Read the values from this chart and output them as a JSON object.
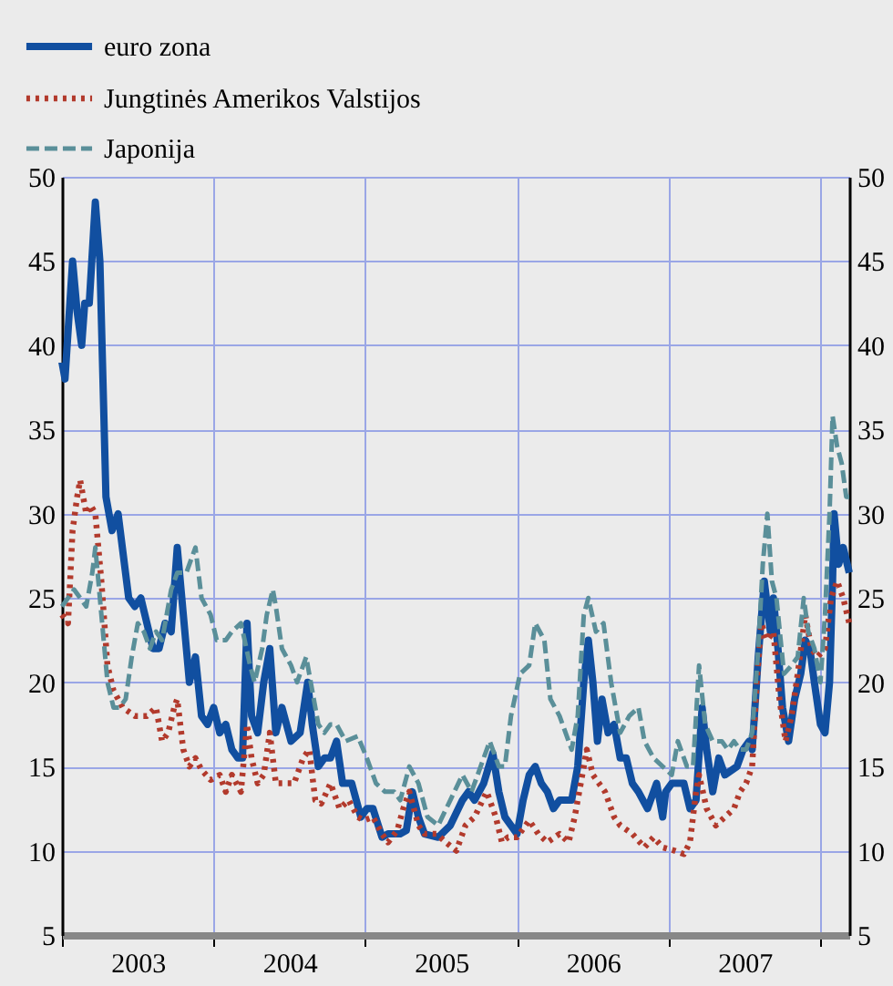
{
  "chart_data": {
    "type": "line",
    "xlim": [
      2003,
      2008.19
    ],
    "xticks": [
      {
        "value": 2003,
        "label": null
      },
      {
        "value": 2003.5,
        "label": "2003"
      },
      {
        "value": 2004,
        "label": null
      },
      {
        "value": 2004.5,
        "label": "2004"
      },
      {
        "value": 2005,
        "label": null
      },
      {
        "value": 2005.5,
        "label": "2005"
      },
      {
        "value": 2006,
        "label": null
      },
      {
        "value": 2006.5,
        "label": "2006"
      },
      {
        "value": 2007,
        "label": null
      },
      {
        "value": 2007.5,
        "label": "2007"
      },
      {
        "value": 2008,
        "label": null
      }
    ],
    "ylim": [
      5,
      50
    ],
    "yticks": [
      5,
      10,
      15,
      20,
      25,
      30,
      35,
      40,
      45,
      50
    ],
    "y2lim": [
      5,
      50
    ],
    "y2ticks": [
      5,
      10,
      15,
      20,
      25,
      30,
      35,
      40,
      45,
      50
    ],
    "grid": true,
    "legend": "top left",
    "marker": "none",
    "series": [
      {
        "name": "euro zona",
        "color": "#114fa0",
        "line_style": "solid",
        "x": [
          2003.0,
          2003.02,
          2003.07,
          2003.1,
          2003.13,
          2003.15,
          2003.18,
          2003.22,
          2003.25,
          2003.27,
          2003.29,
          2003.33,
          2003.37,
          2003.44,
          2003.48,
          2003.52,
          2003.56,
          2003.6,
          2003.64,
          2003.68,
          2003.72,
          2003.76,
          2003.8,
          2003.84,
          2003.88,
          2003.92,
          2003.96,
          2004.0,
          2004.04,
          2004.08,
          2004.12,
          2004.16,
          2004.19,
          2004.22,
          2004.25,
          2004.29,
          2004.33,
          2004.37,
          2004.41,
          2004.45,
          2004.51,
          2004.57,
          2004.62,
          2004.65,
          2004.69,
          2004.73,
          2004.77,
          2004.81,
          2004.85,
          2004.91,
          2004.97,
          2005.01,
          2005.05,
          2005.11,
          2005.15,
          2005.19,
          2005.23,
          2005.27,
          2005.31,
          2005.35,
          2005.39,
          2005.48,
          2005.56,
          2005.64,
          2005.68,
          2005.72,
          2005.78,
          2005.84,
          2005.88,
          2005.92,
          2006.0,
          2006.04,
          2006.08,
          2006.12,
          2006.16,
          2006.2,
          2006.24,
          2006.28,
          2006.36,
          2006.4,
          2006.44,
          2006.47,
          2006.5,
          2006.53,
          2006.56,
          2006.6,
          2006.64,
          2006.68,
          2006.72,
          2006.76,
          2006.8,
          2006.86,
          2006.92,
          2006.96,
          2006.98,
          2007.02,
          2007.1,
          2007.14,
          2007.18,
          2007.22,
          2007.25,
          2007.29,
          2007.33,
          2007.37,
          2007.45,
          2007.49,
          2007.53,
          2007.55,
          2007.59,
          2007.63,
          2007.67,
          2007.69,
          2007.72,
          2007.75,
          2007.79,
          2007.83,
          2007.87,
          2007.9,
          2007.93,
          2007.96,
          2008.0,
          2008.03,
          2008.06,
          2008.08,
          2008.09,
          2008.12,
          2008.15,
          2008.19
        ],
        "values": [
          39,
          38,
          45,
          42,
          40,
          42.5,
          42.5,
          48.5,
          45,
          38,
          31,
          29,
          30,
          25,
          24.5,
          25,
          23.5,
          22,
          22,
          23.5,
          23,
          28,
          24,
          20,
          21.5,
          18,
          17.5,
          18.5,
          17,
          17.5,
          16,
          15.5,
          15.5,
          23.5,
          18,
          17,
          20,
          22,
          17,
          18.5,
          16.5,
          17,
          20,
          17.5,
          15,
          15.5,
          15.5,
          16.5,
          14,
          14,
          12,
          12.5,
          12.5,
          10.8,
          11,
          11,
          11,
          11.2,
          13.5,
          12,
          11,
          10.8,
          11.5,
          13,
          13.5,
          13,
          14,
          15.8,
          13.5,
          12,
          11,
          13,
          14.5,
          15,
          14,
          13.5,
          12.5,
          13,
          13,
          15,
          20,
          22.5,
          20,
          16.5,
          19,
          17,
          17.5,
          15.5,
          15.5,
          14,
          13.5,
          12.5,
          14,
          12,
          13.5,
          14,
          14,
          12.5,
          13,
          18.5,
          16,
          13.5,
          15.5,
          14.5,
          15,
          16,
          16.5,
          16,
          21.5,
          26,
          23,
          25,
          22,
          18.5,
          16.5,
          19,
          20.5,
          22.5,
          22,
          20,
          17.5,
          17,
          20,
          26,
          30,
          27,
          28,
          26.5
        ]
      },
      {
        "name": "Jungtinės Amerikos Valstijos",
        "color": "#b23a2c",
        "line_style": "dotted",
        "x": [
          2003.0,
          2003.04,
          2003.07,
          2003.1,
          2003.12,
          2003.16,
          2003.19,
          2003.22,
          2003.26,
          2003.3,
          2003.34,
          2003.4,
          2003.48,
          2003.56,
          2003.62,
          2003.66,
          2003.7,
          2003.74,
          2003.76,
          2003.8,
          2003.84,
          2003.88,
          2003.92,
          2003.98,
          2004.04,
          2004.08,
          2004.12,
          2004.18,
          2004.22,
          2004.25,
          2004.29,
          2004.33,
          2004.37,
          2004.41,
          2004.47,
          2004.53,
          2004.59,
          2004.63,
          2004.67,
          2004.71,
          2004.77,
          2004.83,
          2004.89,
          2004.95,
          2004.99,
          2005.05,
          2005.11,
          2005.15,
          2005.21,
          2005.25,
          2005.29,
          2005.35,
          2005.39,
          2005.47,
          2005.53,
          2005.6,
          2005.66,
          2005.72,
          2005.8,
          2005.86,
          2005.9,
          2005.94,
          2006.0,
          2006.08,
          2006.14,
          2006.2,
          2006.28,
          2006.34,
          2006.38,
          2006.42,
          2006.46,
          2006.5,
          2006.54,
          2006.58,
          2006.64,
          2006.68,
          2006.76,
          2006.84,
          2006.9,
          2006.96,
          2007.04,
          2007.1,
          2007.14,
          2007.18,
          2007.2,
          2007.25,
          2007.31,
          2007.37,
          2007.43,
          2007.47,
          2007.51,
          2007.55,
          2007.58,
          2007.61,
          2007.65,
          2007.69,
          2007.73,
          2007.77,
          2007.81,
          2007.85,
          2007.9,
          2007.94,
          2007.98,
          2008.03,
          2008.07,
          2008.11,
          2008.15,
          2008.19
        ],
        "values": [
          24,
          23.5,
          29,
          31,
          32,
          30,
          30.5,
          30,
          26,
          21,
          19.5,
          18.5,
          18,
          18,
          18.5,
          16.5,
          17,
          18.5,
          19,
          16,
          15,
          15.5,
          14.8,
          14.2,
          14.5,
          13.5,
          14.5,
          13.5,
          17.5,
          15.5,
          14,
          14.5,
          17,
          14,
          14,
          14,
          15.5,
          16,
          13,
          12.8,
          14,
          12.5,
          13,
          12,
          11.8,
          12,
          11,
          10.5,
          11.2,
          12.5,
          13.5,
          11.5,
          11,
          11,
          10.5,
          10,
          11.5,
          12,
          13.5,
          12,
          10.5,
          10.8,
          10.8,
          11.8,
          11,
          10.5,
          11,
          10.5,
          12,
          14,
          16,
          14.5,
          14,
          13.5,
          12,
          11.5,
          11,
          10.2,
          10.8,
          10.2,
          10,
          9.8,
          10.5,
          13.5,
          14.5,
          12.5,
          11.5,
          12,
          12.5,
          13.5,
          14,
          15,
          20,
          23.5,
          22.5,
          23,
          19,
          16.5,
          18,
          20.5,
          24,
          22,
          21.5,
          22,
          25,
          26,
          25,
          23.5
        ]
      },
      {
        "name": "Japonija",
        "color": "#5a8f99",
        "line_style": "dashed",
        "x": [
          2003.0,
          2003.08,
          2003.12,
          2003.16,
          2003.2,
          2003.22,
          2003.26,
          2003.3,
          2003.34,
          2003.38,
          2003.42,
          2003.46,
          2003.5,
          2003.54,
          2003.58,
          2003.62,
          2003.66,
          2003.72,
          2003.76,
          2003.82,
          2003.88,
          2003.92,
          2003.98,
          2004.02,
          2004.08,
          2004.12,
          2004.18,
          2004.24,
          2004.27,
          2004.32,
          2004.35,
          2004.39,
          2004.41,
          2004.45,
          2004.51,
          2004.55,
          2004.61,
          2004.65,
          2004.69,
          2004.73,
          2004.77,
          2004.81,
          2004.87,
          2004.95,
          2005.01,
          2005.07,
          2005.13,
          2005.19,
          2005.23,
          2005.29,
          2005.35,
          2005.41,
          2005.48,
          2005.56,
          2005.64,
          2005.7,
          2005.76,
          2005.82,
          2005.88,
          2005.92,
          2005.96,
          2006.02,
          2006.08,
          2006.12,
          2006.18,
          2006.22,
          2006.28,
          2006.36,
          2006.4,
          2006.44,
          2006.47,
          2006.52,
          2006.57,
          2006.62,
          2006.68,
          2006.74,
          2006.8,
          2006.84,
          2006.9,
          2006.96,
          2007.02,
          2007.06,
          2007.12,
          2007.16,
          2007.2,
          2007.24,
          2007.29,
          2007.35,
          2007.39,
          2007.43,
          2007.47,
          2007.51,
          2007.55,
          2007.59,
          2007.62,
          2007.65,
          2007.68,
          2007.71,
          2007.76,
          2007.81,
          2007.85,
          2007.89,
          2007.92,
          2007.96,
          2008.0,
          2008.03,
          2008.06,
          2008.08,
          2008.11,
          2008.14,
          2008.17,
          2008.19
        ],
        "values": [
          24.5,
          25.5,
          25,
          24.5,
          26.5,
          28,
          24,
          20,
          18.5,
          18.5,
          19,
          21.5,
          23.5,
          23,
          22,
          23,
          22.5,
          25.5,
          26.5,
          26.5,
          28,
          25,
          24,
          22.5,
          22.5,
          23,
          23.5,
          21,
          20,
          22,
          24,
          25.5,
          24.5,
          22,
          21,
          20,
          21.5,
          19.5,
          17.5,
          17,
          17.5,
          17.5,
          16.5,
          16.8,
          15.5,
          14,
          13.5,
          13.5,
          13,
          15,
          14,
          12,
          11.5,
          13,
          14.5,
          13.5,
          15,
          16.5,
          15,
          15,
          18,
          20.5,
          21,
          23.5,
          22.5,
          19,
          18,
          16,
          18,
          24,
          25,
          23,
          23.5,
          20,
          17,
          18,
          18.5,
          16.5,
          15.5,
          15,
          14.5,
          16.5,
          15,
          15,
          21,
          17.5,
          16.5,
          16.5,
          16,
          16.5,
          16,
          16,
          17,
          22,
          27,
          30,
          26,
          25,
          20.5,
          21,
          21.5,
          25,
          23,
          22,
          20,
          24,
          30,
          35.8,
          34,
          33,
          31,
          31
        ]
      }
    ]
  }
}
